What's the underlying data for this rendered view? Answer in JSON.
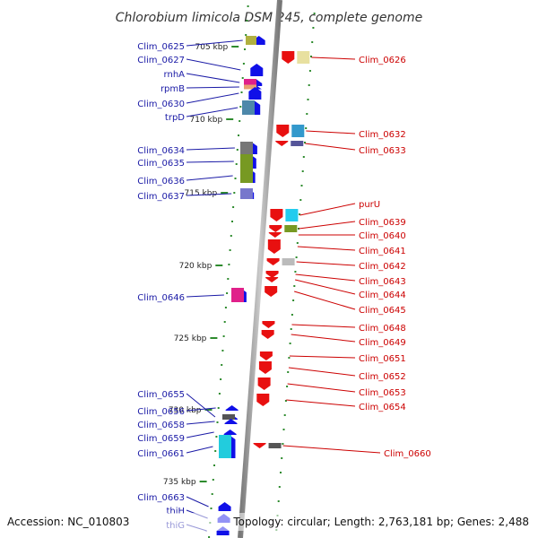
{
  "title": "Chlorobium limicola DSM 245, complete genome",
  "footer": {
    "accession": "Accession: NC_010803",
    "topology": "Topology: circular; Length: 2,763,181 bp; Genes: 2,488"
  },
  "colors": {
    "forward_gene": "#1010e8",
    "reverse_gene": "#e81010",
    "backbone": "#999999",
    "ticks": "#2e8b2e",
    "left_label": "#1a1aa6",
    "right_label": "#cc0000"
  },
  "position_ticks": [
    {
      "label": "705 kbp",
      "kbp": 705
    },
    {
      "label": "710 kbp",
      "kbp": 710
    },
    {
      "label": "715 kbp",
      "kbp": 715
    },
    {
      "label": "720 kbp",
      "kbp": 720
    },
    {
      "label": "725 kbp",
      "kbp": 725
    },
    {
      "label": "730 kbp",
      "kbp": 730
    },
    {
      "label": "735 kbp",
      "kbp": 735
    }
  ],
  "forward_genes": [
    {
      "name": "Clim_0625",
      "cog_color": "#b0b040"
    },
    {
      "name": "Clim_0627",
      "cog_color": "#2233aa"
    },
    {
      "name": "rnhA",
      "cog_color": "#e0208a"
    },
    {
      "name": "rpmB",
      "cog_color": "#e8a070"
    },
    {
      "name": "Clim_0630",
      "cog_color": "#3399aa"
    },
    {
      "name": "trpD",
      "cog_color": "#4d88aa"
    },
    {
      "name": "Clim_0634",
      "cog_color": "#777777"
    },
    {
      "name": "Clim_0635",
      "cog_color": "#779922"
    },
    {
      "name": "Clim_0636",
      "cog_color": "#779922"
    },
    {
      "name": "Clim_0637",
      "cog_color": "#7777cc"
    },
    {
      "name": "Clim_0646",
      "cog_color": "#e0208a"
    },
    {
      "name": "Clim_0655",
      "cog_color": "#555555"
    },
    {
      "name": "Clim_0656",
      "cog_color": ""
    },
    {
      "name": "Clim_0658",
      "cog_color": ""
    },
    {
      "name": "Clim_0659",
      "cog_color": ""
    },
    {
      "name": "Clim_0661",
      "cog_color": "#22ccdd"
    },
    {
      "name": "Clim_0663",
      "cog_color": ""
    },
    {
      "name": "thiH",
      "cog_color": ""
    },
    {
      "name": "thiG",
      "cog_color": ""
    }
  ],
  "reverse_genes": [
    {
      "name": "Clim_0626",
      "cog_color": "#e8e0a0"
    },
    {
      "name": "Clim_0632",
      "cog_color": "#3399cc"
    },
    {
      "name": "Clim_0633",
      "cog_color": "#555599"
    },
    {
      "name": "purU",
      "cog_color": "#22ccee"
    },
    {
      "name": "Clim_0639",
      "cog_color": "#779922"
    },
    {
      "name": "Clim_0640",
      "cog_color": ""
    },
    {
      "name": "Clim_0641",
      "cog_color": ""
    },
    {
      "name": "Clim_0642",
      "cog_color": "#bbbbbb"
    },
    {
      "name": "Clim_0643",
      "cog_color": ""
    },
    {
      "name": "Clim_0644",
      "cog_color": ""
    },
    {
      "name": "Clim_0645",
      "cog_color": ""
    },
    {
      "name": "Clim_0648",
      "cog_color": ""
    },
    {
      "name": "Clim_0649",
      "cog_color": ""
    },
    {
      "name": "Clim_0651",
      "cog_color": ""
    },
    {
      "name": "Clim_0652",
      "cog_color": ""
    },
    {
      "name": "Clim_0653",
      "cog_color": ""
    },
    {
      "name": "Clim_0654",
      "cog_color": ""
    },
    {
      "name": "Clim_0660",
      "cog_color": "#555555"
    }
  ]
}
